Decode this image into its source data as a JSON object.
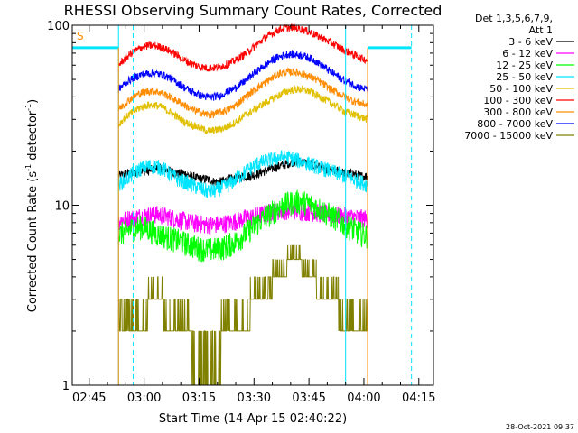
{
  "chart_data": {
    "type": "line",
    "title": "RHESSI Observing Summary Count Rates, Corrected",
    "xlabel": "Start Time (14-Apr-15 02:40:22)",
    "ylabel": "Corrected Count Rate (s⁻¹ detector⁻¹)",
    "ylabel_parts": {
      "main": "Corrected Count Rate (s",
      "exp1": "-1",
      "mid": " detector",
      "exp2": "-1",
      "end": ")"
    },
    "y_scale": "log",
    "ylim": [
      1,
      100
    ],
    "y_ticks": [
      {
        "value": 1,
        "label": "1"
      },
      {
        "value": 10,
        "label": "10"
      },
      {
        "value": 100,
        "label": "100"
      }
    ],
    "xlim": [
      "02:40:22",
      "04:19:00"
    ],
    "x_ticks": [
      "02:45",
      "03:00",
      "03:15",
      "03:30",
      "03:45",
      "04:00",
      "04:15"
    ],
    "legend_header": [
      "Det 1,3,5,6,7,9,",
      "Att 1"
    ],
    "legend_placement": "right",
    "marker_label": "S",
    "marker_color": "#ff8c00",
    "footer": "28-Oct-2021 09:37",
    "data_window": [
      "02:53",
      "04:01"
    ],
    "vertical_lines": [
      {
        "time": "02:53",
        "style": "solid",
        "color": "#00e5ff"
      },
      {
        "time": "02:57",
        "style": "dashed",
        "color": "#00e5ff"
      },
      {
        "time": "03:55",
        "style": "solid",
        "color": "#00e5ff"
      },
      {
        "time": "04:13",
        "style": "dashed",
        "color": "#00e5ff"
      },
      {
        "time": "02:53",
        "style": "solid",
        "color": "#ff8c00"
      },
      {
        "time": "04:01",
        "style": "solid",
        "color": "#ff8c00"
      }
    ],
    "horizontal_bars": [
      {
        "from": "02:40:22",
        "to": "02:53",
        "value": 75,
        "color": "#00e5ff"
      },
      {
        "from": "04:01",
        "to": "04:13",
        "value": 75,
        "color": "#00e5ff"
      }
    ],
    "x": [
      "02:53",
      "02:55",
      "02:57",
      "02:59",
      "03:01",
      "03:03",
      "03:05",
      "03:07",
      "03:09",
      "03:11",
      "03:13",
      "03:15",
      "03:17",
      "03:19",
      "03:21",
      "03:23",
      "03:25",
      "03:27",
      "03:29",
      "03:31",
      "03:33",
      "03:35",
      "03:37",
      "03:39",
      "03:41",
      "03:43",
      "03:45",
      "03:47",
      "03:49",
      "03:51",
      "03:53",
      "03:55",
      "03:57",
      "03:59",
      "04:01"
    ],
    "series": [
      {
        "name": "3 - 6 keV",
        "color": "#000000",
        "values": [
          14.5,
          15,
          15,
          15.5,
          15.5,
          16,
          16,
          15.5,
          15,
          15,
          14.5,
          14,
          14,
          13.5,
          13.5,
          14,
          14,
          14.5,
          14.5,
          15,
          15.5,
          16,
          16.5,
          17,
          17.5,
          17.5,
          17,
          16.5,
          16,
          15.5,
          15.5,
          15,
          15,
          14.5,
          14.5
        ]
      },
      {
        "name": "6 - 12 keV",
        "color": "#ff00ff",
        "values": [
          8.2,
          8.4,
          8.5,
          8.7,
          8.8,
          8.9,
          8.8,
          8.6,
          8.4,
          8.2,
          8.0,
          7.9,
          7.8,
          7.8,
          7.9,
          8.0,
          8.2,
          8.4,
          8.6,
          8.8,
          9.0,
          9.2,
          9.3,
          9.4,
          9.4,
          9.3,
          9.2,
          9.1,
          9.0,
          8.9,
          8.8,
          8.7,
          8.6,
          8.5,
          8.4
        ]
      },
      {
        "name": "12 - 25 keV",
        "color": "#00ff00",
        "values": [
          6.8,
          7.2,
          7.5,
          7.6,
          7.4,
          7.0,
          6.8,
          6.6,
          6.4,
          6.2,
          6.0,
          5.8,
          5.7,
          5.7,
          5.8,
          6.0,
          6.3,
          6.8,
          7.4,
          8.0,
          8.6,
          9.2,
          9.8,
          10.2,
          10.5,
          10.5,
          10.2,
          9.8,
          9.3,
          8.8,
          8.3,
          7.8,
          7.4,
          7.0,
          6.8
        ]
      },
      {
        "name": "25 - 50 keV",
        "color": "#00e5ff",
        "values": [
          13,
          14,
          15,
          16,
          16.5,
          16.5,
          16,
          15,
          14,
          13.5,
          13,
          12.5,
          12,
          12,
          12.5,
          13,
          14,
          15,
          16,
          17,
          17.5,
          18,
          18.5,
          18.5,
          18,
          17.5,
          17,
          16.5,
          16,
          15.5,
          15,
          14.5,
          14,
          13.5,
          13
        ]
      },
      {
        "name": "50 - 100 keV",
        "color": "#e0c000",
        "values": [
          28,
          31,
          33,
          35,
          36,
          36,
          35,
          33,
          31,
          29,
          28,
          27,
          26,
          26,
          26.5,
          27.5,
          29,
          31,
          33,
          35,
          37,
          39,
          41,
          43,
          44,
          44,
          43,
          41,
          39,
          37,
          35,
          33,
          32,
          31,
          30
        ]
      },
      {
        "name": "100 - 300 keV",
        "color": "#ff0000",
        "values": [
          60,
          66,
          71,
          75,
          77,
          77,
          75,
          72,
          68,
          64,
          61,
          59,
          58,
          58,
          59,
          61,
          64,
          68,
          73,
          79,
          85,
          90,
          95,
          97,
          97,
          95,
          92,
          88,
          84,
          80,
          76,
          72,
          69,
          66,
          64
        ]
      },
      {
        "name": "300 - 800 keV",
        "color": "#ff8c00",
        "values": [
          34,
          37,
          40,
          42,
          43,
          43,
          42,
          40,
          38,
          36,
          34,
          33,
          32,
          32,
          33,
          34,
          36,
          39,
          42,
          45,
          48,
          51,
          54,
          55,
          55,
          54,
          52,
          50,
          47,
          44,
          42,
          40,
          38,
          37,
          36
        ]
      },
      {
        "name": "800 - 7000 keV",
        "color": "#0000ff",
        "values": [
          44,
          48,
          51,
          53,
          54,
          54,
          53,
          51,
          48,
          45,
          43,
          41,
          40,
          40,
          41,
          43,
          45,
          48,
          52,
          56,
          60,
          64,
          67,
          69,
          69,
          68,
          66,
          63,
          59,
          55,
          52,
          49,
          47,
          45,
          44
        ]
      },
      {
        "name": "7000 - 15000 keV",
        "color": "#808000",
        "values": [
          2,
          2,
          2.5,
          2.5,
          3,
          3,
          3,
          2.5,
          2.5,
          2,
          2,
          1.8,
          1.8,
          1.8,
          2,
          2,
          2.2,
          2.5,
          3,
          3,
          3.5,
          4,
          4.5,
          5,
          5,
          5,
          4.5,
          4,
          3.5,
          3,
          3,
          2.5,
          2.5,
          2,
          2
        ]
      }
    ]
  }
}
